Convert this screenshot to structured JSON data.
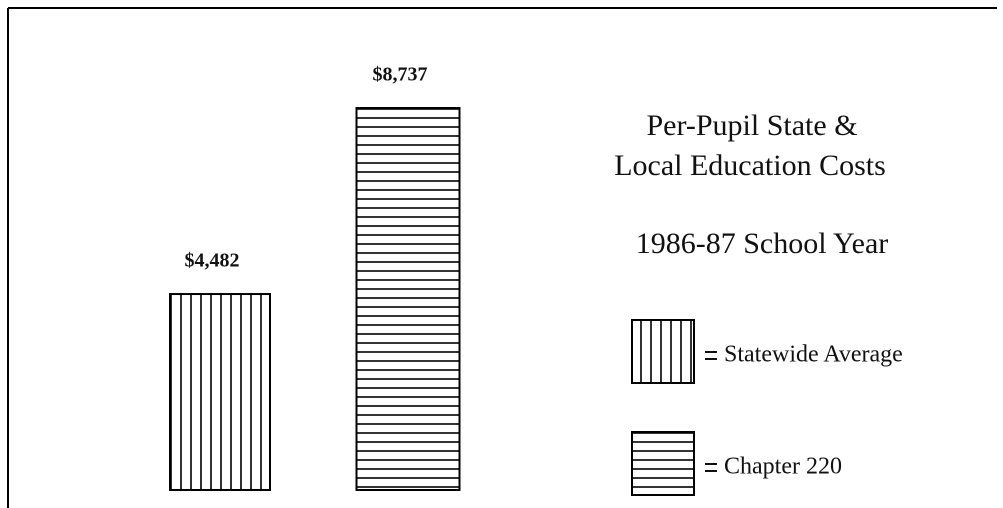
{
  "chart_data": {
    "type": "bar",
    "title": [
      "Per-Pupil State &",
      "Local Education Costs"
    ],
    "subtitle": "1986-87 School Year",
    "series": [
      {
        "name": "Statewide Average",
        "color": "#000000",
        "pattern": "vertical",
        "values": [
          4482
        ],
        "value_labels": [
          "$4,482"
        ]
      },
      {
        "name": "Chapter 220",
        "color": "#000000",
        "pattern": "horizontal",
        "values": [
          8737
        ],
        "value_labels": [
          "$8,737"
        ]
      }
    ]
  }
}
